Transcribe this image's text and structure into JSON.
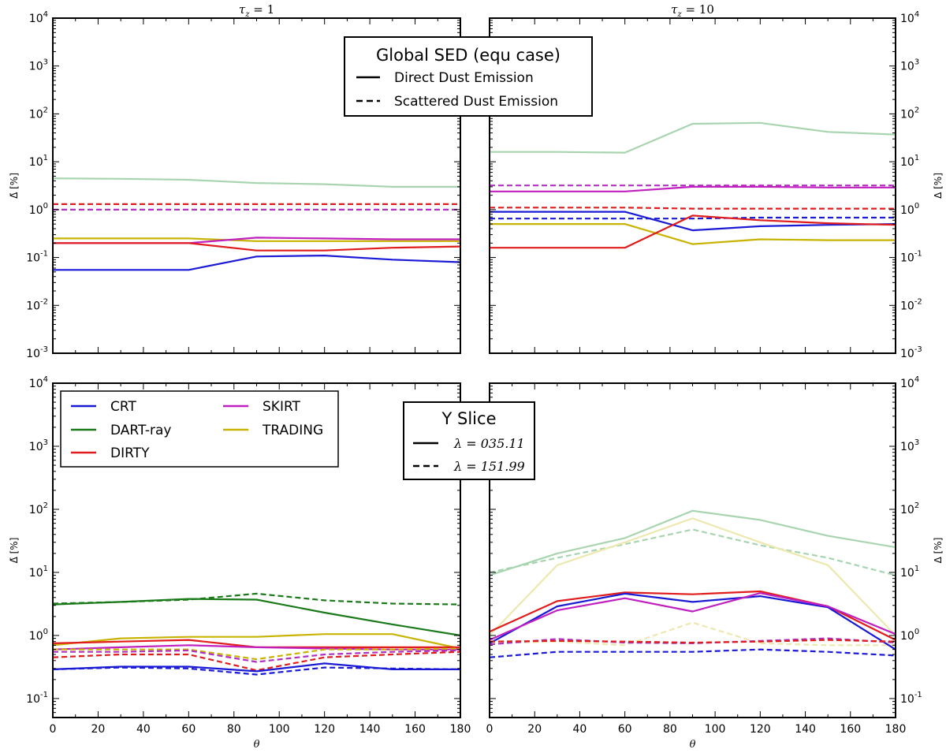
{
  "chart_data": [
    {
      "id": "top-left",
      "type": "line",
      "title": "τz = 1",
      "title_main": "τ",
      "title_sub": "z",
      "title_rest": " = 1",
      "ylabel": "Δ̄ [%]",
      "xlabel": "",
      "yscale": "log",
      "ylim": [
        0.001,
        10000
      ],
      "xlim": [
        0,
        180
      ],
      "x": [
        0,
        30,
        60,
        90,
        120,
        150,
        180
      ],
      "ytick_exponents": [
        "-3",
        "-2",
        "-1",
        "0",
        "1",
        "2",
        "3",
        "4"
      ],
      "legend": {
        "title": "Global SED (equ case)",
        "entries": [
          {
            "label": "Direct Dust Emission",
            "style": "solid"
          },
          {
            "label": "Scattered Dust Emission",
            "style": "dashed"
          }
        ]
      },
      "series": [
        {
          "name": "DART-ray",
          "color": "#a8d5b0",
          "style": "solid",
          "values": [
            4.5,
            4.4,
            4.2,
            3.6,
            3.4,
            3.0,
            3.0
          ]
        },
        {
          "name": "DIRTY",
          "color": "#e01c1c",
          "style": "dashed",
          "values": [
            1.3,
            1.3,
            1.3,
            1.3,
            1.3,
            1.3,
            1.3
          ]
        },
        {
          "name": "SKIRT",
          "color": "#b030c0",
          "style": "dashed",
          "values": [
            1.0,
            1.0,
            1.0,
            1.0,
            1.0,
            1.0,
            1.0
          ]
        },
        {
          "name": "TRADING",
          "color": "#c8b400",
          "style": "solid",
          "values": [
            0.25,
            0.25,
            0.25,
            0.22,
            0.22,
            0.22,
            0.22
          ]
        },
        {
          "name": "SKIRT",
          "color": "#c020c0",
          "style": "solid",
          "values": [
            0.2,
            0.2,
            0.2,
            0.26,
            0.25,
            0.24,
            0.24
          ]
        },
        {
          "name": "DIRTY",
          "color": "#e01c1c",
          "style": "solid",
          "values": [
            0.2,
            0.2,
            0.2,
            0.14,
            0.14,
            0.16,
            0.17
          ]
        },
        {
          "name": "CRT",
          "color": "#1a1ad6",
          "style": "solid",
          "values": [
            0.055,
            0.055,
            0.055,
            0.105,
            0.11,
            0.09,
            0.08
          ]
        }
      ]
    },
    {
      "id": "top-right",
      "type": "line",
      "title": "τz = 10",
      "title_main": "τ",
      "title_sub": "z",
      "title_rest": " = 10",
      "ylabel": "Δ [%]",
      "xlabel": "",
      "yscale": "log",
      "ylim": [
        0.001,
        10000
      ],
      "xlim": [
        0,
        180
      ],
      "x": [
        0,
        30,
        60,
        90,
        120,
        150,
        180
      ],
      "ytick_exponents": [
        "-3",
        "-2",
        "-1",
        "0",
        "1",
        "2",
        "3",
        "4"
      ],
      "series": [
        {
          "name": "DART-ray",
          "color": "#a8d5b0",
          "style": "solid",
          "values": [
            16,
            16,
            15.5,
            62,
            65,
            42,
            37
          ]
        },
        {
          "name": "SKIRT",
          "color": "#b030c0",
          "style": "dashed",
          "values": [
            3.2,
            3.2,
            3.2,
            3.2,
            3.2,
            3.2,
            3.2
          ]
        },
        {
          "name": "SKIRT",
          "color": "#c020c0",
          "style": "solid",
          "values": [
            2.4,
            2.4,
            2.4,
            3.0,
            3.0,
            2.9,
            2.9
          ]
        },
        {
          "name": "DIRTY",
          "color": "#e01c1c",
          "style": "dashed",
          "values": [
            1.1,
            1.1,
            1.1,
            1.05,
            1.05,
            1.05,
            1.05
          ]
        },
        {
          "name": "CRT",
          "color": "#1a1ad6",
          "style": "dashed",
          "values": [
            0.65,
            0.65,
            0.65,
            0.65,
            0.68,
            0.68,
            0.68
          ]
        },
        {
          "name": "CRT",
          "color": "#1a1ad6",
          "style": "solid",
          "values": [
            0.9,
            0.9,
            0.9,
            0.37,
            0.45,
            0.48,
            0.5
          ]
        },
        {
          "name": "TRADING",
          "color": "#c8b400",
          "style": "solid",
          "values": [
            0.5,
            0.5,
            0.5,
            0.19,
            0.24,
            0.23,
            0.23
          ]
        },
        {
          "name": "DIRTY",
          "color": "#e01c1c",
          "style": "solid",
          "values": [
            0.16,
            0.16,
            0.16,
            0.75,
            0.6,
            0.52,
            0.48
          ]
        }
      ]
    },
    {
      "id": "bottom-left",
      "type": "line",
      "title": "",
      "ylabel": "Δ̄ [%]",
      "xlabel": "θ",
      "yscale": "log",
      "ylim": [
        0.05,
        10000
      ],
      "xlim": [
        0,
        180
      ],
      "x": [
        0,
        30,
        60,
        90,
        120,
        150,
        180
      ],
      "xticks": [
        "0",
        "20",
        "40",
        "60",
        "80",
        "100",
        "120",
        "140",
        "160",
        "180"
      ],
      "ytick_exponents": [
        "-1",
        "0",
        "1",
        "2",
        "3",
        "4"
      ],
      "legend": {
        "entries": [
          {
            "label": "CRT",
            "color": "#1a1ad6"
          },
          {
            "label": "DART-ray",
            "color": "#1a7a1a"
          },
          {
            "label": "DIRTY",
            "color": "#e01c1c"
          },
          {
            "label": "SKIRT",
            "color": "#c020c0"
          },
          {
            "label": "TRADING",
            "color": "#c8b400"
          }
        ]
      },
      "legend2": {
        "title": "Y Slice",
        "entries": [
          {
            "lambda": "λ",
            "eq": " = ",
            "value": "035.11",
            "style": "solid"
          },
          {
            "lambda": "λ",
            "eq": " = ",
            "value": "151.99",
            "style": "dashed"
          }
        ]
      },
      "series": [
        {
          "name": "DART-ray",
          "color": "#1a7a1a",
          "style": "dashed",
          "values": [
            3.2,
            3.4,
            3.7,
            4.6,
            3.6,
            3.2,
            3.1
          ]
        },
        {
          "name": "DART-ray",
          "color": "#1a7a1a",
          "style": "solid",
          "values": [
            3.1,
            3.4,
            3.8,
            3.7,
            2.3,
            1.5,
            1.0
          ]
        },
        {
          "name": "TRADING",
          "color": "#c8b400",
          "style": "solid",
          "values": [
            0.7,
            0.9,
            0.95,
            0.95,
            1.05,
            1.05,
            0.62
          ]
        },
        {
          "name": "DIRTY",
          "color": "#e01c1c",
          "style": "solid",
          "values": [
            0.75,
            0.8,
            0.85,
            0.65,
            0.65,
            0.65,
            0.65
          ]
        },
        {
          "name": "SKIRT",
          "color": "#c020c0",
          "style": "solid",
          "values": [
            0.6,
            0.65,
            0.7,
            0.65,
            0.62,
            0.6,
            0.6
          ]
        },
        {
          "name": "TRADING",
          "color": "#c8b400",
          "style": "dashed",
          "values": [
            0.6,
            0.6,
            0.6,
            0.42,
            0.6,
            0.6,
            0.62
          ]
        },
        {
          "name": "SKIRT",
          "color": "#b030c0",
          "style": "dashed",
          "values": [
            0.55,
            0.55,
            0.58,
            0.38,
            0.5,
            0.55,
            0.58
          ]
        },
        {
          "name": "DIRTY",
          "color": "#e01c1c",
          "style": "dashed",
          "values": [
            0.45,
            0.5,
            0.5,
            0.28,
            0.45,
            0.5,
            0.55
          ]
        },
        {
          "name": "CRT",
          "color": "#1a1ad6",
          "style": "solid",
          "values": [
            0.29,
            0.32,
            0.32,
            0.27,
            0.36,
            0.29,
            0.29
          ]
        },
        {
          "name": "CRT",
          "color": "#1a1ad6",
          "style": "dashed",
          "values": [
            0.29,
            0.31,
            0.3,
            0.24,
            0.31,
            0.3,
            0.29
          ]
        }
      ]
    },
    {
      "id": "bottom-right",
      "type": "line",
      "title": "",
      "ylabel": "Δ [%]",
      "xlabel": "θ",
      "yscale": "log",
      "ylim": [
        0.05,
        10000
      ],
      "xlim": [
        0,
        180
      ],
      "x": [
        0,
        30,
        60,
        90,
        120,
        150,
        180
      ],
      "xticks": [
        "0",
        "20",
        "40",
        "60",
        "80",
        "100",
        "120",
        "140",
        "160",
        "180"
      ],
      "ytick_exponents": [
        "-1",
        "0",
        "1",
        "2",
        "3",
        "4"
      ],
      "series": [
        {
          "name": "DART-ray",
          "color": "#a8d5b0",
          "style": "solid",
          "values": [
            9,
            20,
            35,
            95,
            68,
            38,
            25
          ]
        },
        {
          "name": "DART-ray",
          "color": "#a8d5b0",
          "style": "dashed",
          "values": [
            10,
            17,
            28,
            48,
            27,
            17,
            9
          ]
        },
        {
          "name": "TRADING",
          "color": "#ede8b0",
          "style": "solid",
          "values": [
            1.0,
            13,
            30,
            72,
            30,
            13,
            1.0
          ]
        },
        {
          "name": "TRADING",
          "color": "#ede8b0",
          "style": "dashed",
          "values": [
            0.75,
            0.8,
            0.7,
            1.6,
            0.75,
            0.7,
            0.7
          ]
        },
        {
          "name": "DIRTY",
          "color": "#e01c1c",
          "style": "solid",
          "values": [
            1.15,
            3.5,
            4.8,
            4.5,
            5.0,
            2.9,
            0.85
          ]
        },
        {
          "name": "CRT",
          "color": "#1a1ad6",
          "style": "solid",
          "values": [
            0.75,
            2.9,
            4.6,
            3.4,
            4.2,
            2.8,
            0.6
          ]
        },
        {
          "name": "SKIRT",
          "color": "#c020c0",
          "style": "solid",
          "values": [
            0.85,
            2.5,
            3.9,
            2.4,
            4.7,
            2.9,
            1.05
          ]
        },
        {
          "name": "SKIRT",
          "color": "#b030c0",
          "style": "dashed",
          "values": [
            0.72,
            0.88,
            0.77,
            0.75,
            0.82,
            0.9,
            0.77
          ]
        },
        {
          "name": "DIRTY",
          "color": "#e01c1c",
          "style": "dashed",
          "values": [
            0.8,
            0.82,
            0.8,
            0.77,
            0.8,
            0.85,
            0.8
          ]
        },
        {
          "name": "CRT",
          "color": "#1a1ad6",
          "style": "dashed",
          "values": [
            0.45,
            0.55,
            0.55,
            0.55,
            0.6,
            0.55,
            0.48
          ]
        }
      ]
    }
  ]
}
